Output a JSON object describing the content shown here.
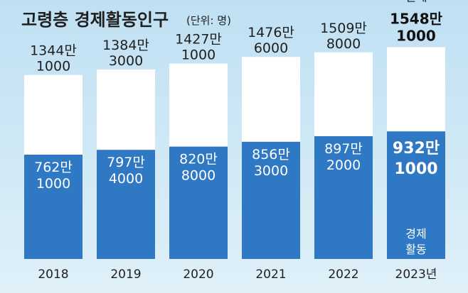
{
  "chart_data": {
    "type": "bar",
    "title": "고령층 경제활동인구",
    "unit_note": "(단위: 명)",
    "categories": [
      "2018",
      "2019",
      "2020",
      "2021",
      "2022",
      "2023년"
    ],
    "series": [
      {
        "name": "전체",
        "values": [
          13441000,
          13843000,
          14271000,
          14766000,
          15098000,
          15481000
        ],
        "labels": [
          [
            "1344만",
            "1000"
          ],
          [
            "1384만",
            "3000"
          ],
          [
            "1427만",
            "1000"
          ],
          [
            "1476만",
            "6000"
          ],
          [
            "1509만",
            "8000"
          ],
          [
            "1548만",
            "1000"
          ]
        ]
      },
      {
        "name": "경제활동",
        "values": [
          7621000,
          7974000,
          8208000,
          8563000,
          8972000,
          9321000
        ],
        "labels": [
          [
            "762만",
            "1000"
          ],
          [
            "797만",
            "4000"
          ],
          [
            "820만",
            "8000"
          ],
          [
            "856만",
            "3000"
          ],
          [
            "897만",
            "2000"
          ],
          [
            "932만",
            "1000"
          ]
        ]
      }
    ],
    "total_prefix_last": "전체",
    "active_tag_last": [
      "경제",
      "활동"
    ],
    "colors": {
      "total_bar": "#ffffff",
      "active_bar": "#2f78c4",
      "background_top": "#bfe0f3",
      "background_bottom": "#dff0f8"
    }
  }
}
